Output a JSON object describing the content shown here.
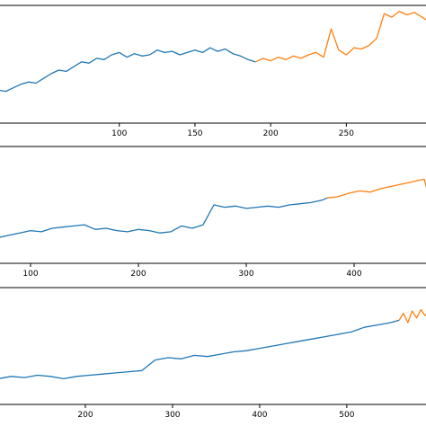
{
  "colors": {
    "history": "#1f77b4",
    "forecast": "#ff7f0e",
    "frame": "#000000"
  },
  "chart_data": [
    {
      "type": "line",
      "xlim": [
        20,
        305
      ],
      "ylim": [
        0,
        100
      ],
      "xticks": [
        100,
        150,
        200,
        250
      ],
      "xtick_labels": [
        "100",
        "150",
        "200",
        "250"
      ],
      "grid": false,
      "series": [
        {
          "x": [
            20,
            25,
            30,
            35,
            40,
            45,
            50,
            55,
            60,
            65,
            70,
            75,
            80,
            85,
            90,
            95,
            100,
            105,
            110,
            115,
            120,
            125,
            130,
            135,
            140,
            145,
            150,
            155,
            160,
            165,
            170,
            175,
            180,
            185,
            190
          ],
          "y": [
            28,
            27,
            30,
            33,
            35,
            34,
            38,
            42,
            45,
            44,
            48,
            52,
            51,
            55,
            54,
            58,
            60,
            56,
            59,
            57,
            58,
            62,
            60,
            61,
            58,
            60,
            62,
            60,
            64,
            61,
            63,
            59,
            57,
            54,
            52
          ]
        },
        {
          "x": [
            190,
            195,
            200,
            205,
            210,
            215,
            220,
            225,
            230,
            235,
            240,
            245,
            250,
            255,
            260,
            265,
            270,
            275,
            280,
            285,
            290,
            295,
            300,
            305
          ],
          "y": [
            52,
            55,
            53,
            56,
            54,
            57,
            55,
            58,
            60,
            56,
            80,
            62,
            58,
            64,
            63,
            66,
            72,
            93,
            90,
            95,
            92,
            94,
            90,
            86
          ]
        }
      ]
    },
    {
      "type": "line",
      "xlim": [
        70,
        470
      ],
      "ylim": [
        0,
        100
      ],
      "xticks": [
        100,
        200,
        300,
        400
      ],
      "xtick_labels": [
        "100",
        "200",
        "300",
        "400"
      ],
      "grid": false,
      "series": [
        {
          "x": [
            70,
            80,
            90,
            100,
            110,
            120,
            130,
            140,
            150,
            160,
            170,
            180,
            190,
            200,
            210,
            220,
            230,
            240,
            250,
            260,
            270,
            280,
            290,
            300,
            310,
            320,
            330,
            340,
            350,
            360,
            370,
            375
          ],
          "y": [
            22,
            24,
            26,
            28,
            27,
            30,
            31,
            32,
            33,
            29,
            30,
            28,
            27,
            29,
            28,
            26,
            27,
            32,
            30,
            33,
            50,
            48,
            49,
            47,
            48,
            49,
            48,
            50,
            51,
            52,
            54,
            56
          ]
        },
        {
          "x": [
            375,
            385,
            395,
            405,
            415,
            425,
            435,
            445,
            455,
            465,
            470
          ],
          "y": [
            56,
            57,
            60,
            62,
            61,
            64,
            66,
            68,
            70,
            72,
            55
          ]
        }
      ]
    },
    {
      "type": "line",
      "xlim": [
        100,
        595
      ],
      "ylim": [
        0,
        100
      ],
      "xticks": [
        200,
        300,
        400,
        500
      ],
      "xtick_labels": [
        "200",
        "300",
        "400",
        "500"
      ],
      "grid": false,
      "series": [
        {
          "x": [
            100,
            115,
            130,
            145,
            160,
            175,
            190,
            205,
            220,
            235,
            250,
            265,
            280,
            295,
            310,
            325,
            340,
            355,
            370,
            385,
            400,
            415,
            430,
            445,
            460,
            475,
            490,
            505,
            520,
            535,
            550,
            560
          ],
          "y": [
            22,
            24,
            23,
            25,
            24,
            22,
            24,
            25,
            26,
            27,
            28,
            29,
            38,
            40,
            39,
            42,
            41,
            43,
            45,
            46,
            48,
            50,
            52,
            54,
            56,
            58,
            60,
            62,
            66,
            68,
            70,
            72
          ]
        },
        {
          "x": [
            560,
            565,
            570,
            575,
            580,
            585,
            590,
            595
          ],
          "y": [
            72,
            78,
            70,
            80,
            74,
            81,
            76,
            80
          ]
        }
      ]
    }
  ]
}
